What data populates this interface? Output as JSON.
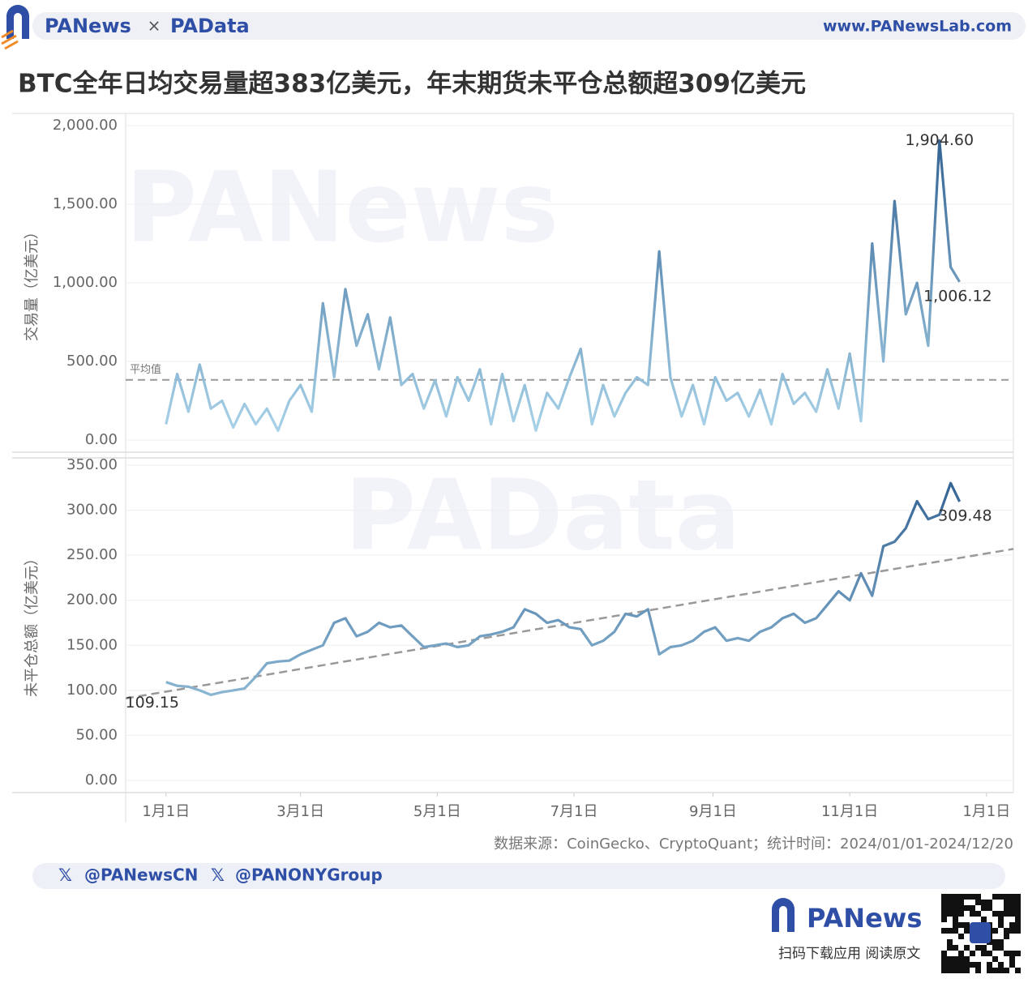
{
  "header": {
    "brand": "PANews",
    "separator": "×",
    "brand2": "PAData",
    "url": "www.PANewsLab.com"
  },
  "title": "BTC全年日均交易量超383亿美元，年末期货未平仓总额超309亿美元",
  "chart_data": [
    {
      "type": "line",
      "y_label": "交易量（亿美元）",
      "xlim": [
        -18,
        378
      ],
      "ylim": [
        0,
        2000
      ],
      "yticks": [
        {
          "value": 0,
          "label": "0.00"
        },
        {
          "value": 500,
          "label": "500.00"
        },
        {
          "value": 1000,
          "label": "1,000.00"
        },
        {
          "value": 1500,
          "label": "1,500.00"
        },
        {
          "value": 2000,
          "label": "2,000.00"
        }
      ],
      "grid": true,
      "color_low": "#acd6eb",
      "color_high": "#2e5e90",
      "mean": 383,
      "mean_label": "平均值",
      "x": [
        0,
        5,
        10,
        15,
        20,
        25,
        30,
        35,
        40,
        45,
        50,
        55,
        60,
        65,
        70,
        75,
        80,
        85,
        90,
        95,
        100,
        105,
        110,
        115,
        120,
        125,
        130,
        135,
        140,
        145,
        150,
        155,
        160,
        165,
        170,
        175,
        180,
        185,
        190,
        195,
        200,
        205,
        210,
        215,
        220,
        225,
        230,
        235,
        240,
        245,
        250,
        255,
        260,
        265,
        270,
        275,
        280,
        285,
        290,
        295,
        300,
        305,
        310,
        315,
        320,
        325,
        330,
        335,
        340,
        345,
        350,
        354
      ],
      "values": [
        100,
        420,
        180,
        480,
        200,
        250,
        80,
        230,
        100,
        200,
        60,
        250,
        350,
        180,
        870,
        400,
        960,
        600,
        800,
        450,
        780,
        350,
        420,
        200,
        380,
        150,
        400,
        250,
        450,
        100,
        420,
        120,
        350,
        60,
        300,
        200,
        400,
        580,
        100,
        350,
        150,
        300,
        400,
        350,
        1200,
        400,
        150,
        350,
        100,
        400,
        250,
        300,
        150,
        320,
        100,
        420,
        230,
        300,
        180,
        450,
        200,
        550,
        120,
        1250,
        500,
        1520,
        800,
        1000,
        600,
        1904.6,
        1100,
        1006.12
      ],
      "value_labels": [
        null,
        null,
        null,
        null,
        null,
        null,
        null,
        null,
        null,
        null,
        null,
        null,
        null,
        null,
        null,
        null,
        null,
        null,
        null,
        null,
        null,
        null,
        null,
        null,
        null,
        null,
        null,
        null,
        null,
        null,
        null,
        null,
        null,
        null,
        null,
        null,
        null,
        null,
        null,
        null,
        null,
        null,
        null,
        null,
        null,
        null,
        null,
        null,
        null,
        null,
        null,
        null,
        null,
        null,
        null,
        null,
        null,
        null,
        null,
        null,
        null,
        null,
        null,
        null,
        null,
        null,
        null,
        null,
        null,
        "1,904.60",
        null,
        "1,006.12"
      ]
    },
    {
      "type": "line",
      "y_label": "未平仓总额（亿美元）",
      "xlim": [
        -18,
        378
      ],
      "ylim": [
        0,
        350
      ],
      "yticks": [
        {
          "value": 0,
          "label": "0.00"
        },
        {
          "value": 50,
          "label": "50.00"
        },
        {
          "value": 100,
          "label": "100.00"
        },
        {
          "value": 150,
          "label": "150.00"
        },
        {
          "value": 200,
          "label": "200.00"
        },
        {
          "value": 250,
          "label": "250.00"
        },
        {
          "value": 300,
          "label": "300.00"
        },
        {
          "value": 350,
          "label": "350.00"
        }
      ],
      "xticks": [
        {
          "value": 0,
          "label": "1月1日"
        },
        {
          "value": 60,
          "label": "3月1日"
        },
        {
          "value": 121,
          "label": "5月1日"
        },
        {
          "value": 182,
          "label": "7月1日"
        },
        {
          "value": 244,
          "label": "9月1日"
        },
        {
          "value": 305,
          "label": "11月1日"
        },
        {
          "value": 366,
          "label": "1月1日"
        }
      ],
      "grid": true,
      "color_low": "#acd6eb",
      "color_high": "#2e5e90",
      "trend": {
        "x": [
          -18,
          378
        ],
        "values": [
          91,
          257
        ]
      },
      "x": [
        0,
        5,
        10,
        15,
        20,
        25,
        30,
        35,
        40,
        45,
        50,
        55,
        60,
        65,
        70,
        75,
        80,
        85,
        90,
        95,
        100,
        105,
        110,
        115,
        120,
        125,
        130,
        135,
        140,
        145,
        150,
        155,
        160,
        165,
        170,
        175,
        180,
        185,
        190,
        195,
        200,
        205,
        210,
        215,
        220,
        225,
        230,
        235,
        240,
        245,
        250,
        255,
        260,
        265,
        270,
        275,
        280,
        285,
        290,
        295,
        300,
        305,
        310,
        315,
        320,
        325,
        330,
        335,
        340,
        345,
        350,
        354
      ],
      "values": [
        109.15,
        105,
        104,
        100,
        95,
        98,
        100,
        102,
        115,
        130,
        132,
        133,
        140,
        145,
        150,
        175,
        180,
        160,
        165,
        175,
        170,
        172,
        160,
        148,
        150,
        152,
        148,
        150,
        160,
        162,
        165,
        170,
        190,
        185,
        175,
        178,
        170,
        168,
        150,
        155,
        165,
        185,
        182,
        190,
        140,
        148,
        150,
        155,
        165,
        170,
        155,
        158,
        155,
        165,
        170,
        180,
        185,
        175,
        180,
        195,
        210,
        200,
        230,
        205,
        260,
        265,
        280,
        310,
        290,
        295,
        330,
        309.48
      ],
      "value_labels": [
        "109.15",
        null,
        null,
        null,
        null,
        null,
        null,
        null,
        null,
        null,
        null,
        null,
        null,
        null,
        null,
        null,
        null,
        null,
        null,
        null,
        null,
        null,
        null,
        null,
        null,
        null,
        null,
        null,
        null,
        null,
        null,
        null,
        null,
        null,
        null,
        null,
        null,
        null,
        null,
        null,
        null,
        null,
        null,
        null,
        null,
        null,
        null,
        null,
        null,
        null,
        null,
        null,
        null,
        null,
        null,
        null,
        null,
        null,
        null,
        null,
        null,
        null,
        null,
        null,
        null,
        null,
        null,
        null,
        null,
        null,
        null,
        "309.48"
      ]
    }
  ],
  "source": "数据来源：CoinGecko、CryptoQuant；统计时间：2024/01/01-2024/12/20",
  "footer": {
    "social": [
      "@PANewsCN",
      "@PANONYGroup"
    ],
    "brand": "PANews",
    "cta": "扫码下载应用  阅读原文"
  }
}
